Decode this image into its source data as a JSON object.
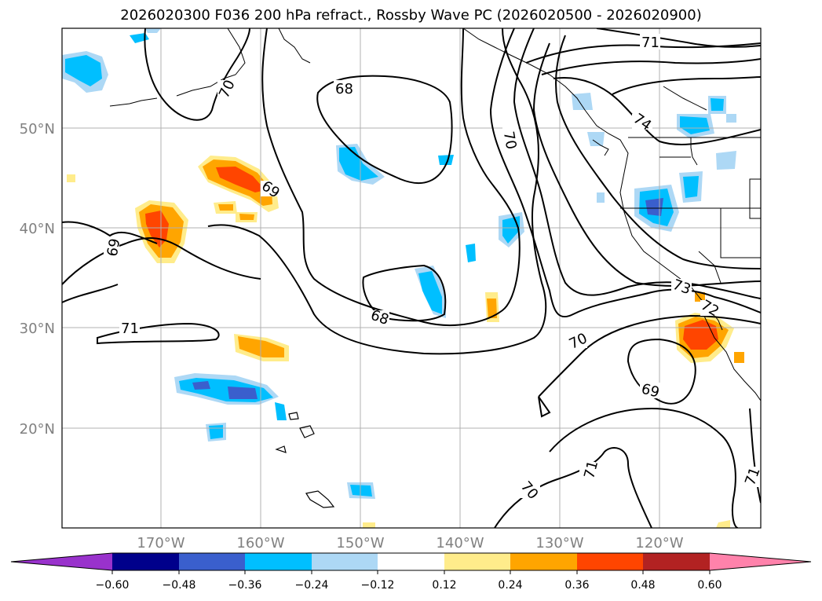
{
  "title": "2026020300 F036 200 hPa refract., Rossby Wave PC (2026020500 - 2026020900)",
  "lat_labels": [
    "50°N",
    "40°N",
    "30°N",
    "20°N"
  ],
  "lon_labels": [
    "170°W",
    "160°W",
    "150°W",
    "140°W",
    "130°W",
    "120°W"
  ],
  "contour_labels": [
    "71",
    "70",
    "68",
    "74",
    "69",
    "69",
    "73",
    "72",
    "71",
    "68",
    "70",
    "69",
    "71",
    "70",
    "71"
  ],
  "colorbar": {
    "ticks": [
      "−0.60",
      "−0.48",
      "−0.36",
      "−0.24",
      "−0.12",
      "0.12",
      "0.24",
      "0.36",
      "0.48",
      "0.60"
    ],
    "colors": [
      "#9932cc",
      "#00008b",
      "#3a5fcd",
      "#00bfff",
      "#add8f5",
      "#ffffff",
      "#ffec8b",
      "#ffa500",
      "#ff4500",
      "#b22222",
      "#ff82ab"
    ]
  },
  "colors": {
    "neg_light": "#add8f5",
    "neg_mid": "#00bfff",
    "neg_strong": "#3a5fcd",
    "pos_light": "#ffec8b",
    "pos_mid": "#ffa500",
    "pos_strong": "#ff4500",
    "grid": "#b0b0b0",
    "axis_label": "#808080"
  }
}
